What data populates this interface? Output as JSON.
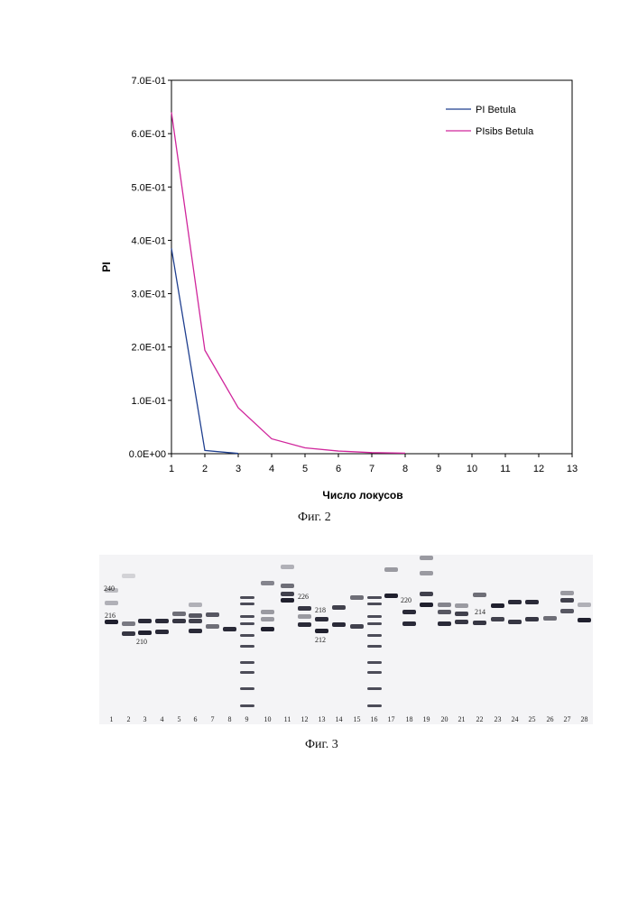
{
  "chart_data": {
    "type": "line",
    "title": "",
    "xlabel": "Число локусов",
    "ylabel": "PI",
    "xlim": [
      1,
      13
    ],
    "ylim": [
      0,
      0.7
    ],
    "x_ticks": [
      "1",
      "2",
      "3",
      "4",
      "5",
      "6",
      "7",
      "8",
      "9",
      "10",
      "11",
      "12",
      "13"
    ],
    "y_ticks": [
      "0.0E+00",
      "1.0E-01",
      "2.0E-01",
      "3.0E-01",
      "4.0E-01",
      "5.0E-01",
      "6.0E-01",
      "7.0E-01"
    ],
    "grid": false,
    "legend_position": "top-right",
    "series": [
      {
        "name": "PI Betula",
        "color": "#1f3f8f",
        "x": [
          1,
          2,
          3
        ],
        "y": [
          0.385,
          0.006,
          0.0005
        ]
      },
      {
        "name": "PIsibs Betula",
        "color": "#d0269c",
        "x": [
          1,
          2,
          3,
          4,
          5,
          6,
          7,
          8
        ],
        "y": [
          0.64,
          0.194,
          0.086,
          0.028,
          0.011,
          0.005,
          0.002,
          0.001
        ]
      }
    ]
  },
  "captions": {
    "figure2": "Фиг. 2",
    "figure3": "Фиг. 3"
  },
  "gel": {
    "size_labels": [
      "240",
      "216",
      "210",
      "226",
      "218",
      "212",
      "220",
      "214"
    ],
    "lane_numbers": [
      "1",
      "2",
      "3",
      "4",
      "5",
      "6",
      "7",
      "8",
      "9",
      "10",
      "11",
      "12",
      "13",
      "14",
      "15",
      "16",
      "17",
      "18",
      "19",
      "20",
      "21",
      "22",
      "23",
      "24",
      "25",
      "26",
      "27",
      "28"
    ]
  }
}
